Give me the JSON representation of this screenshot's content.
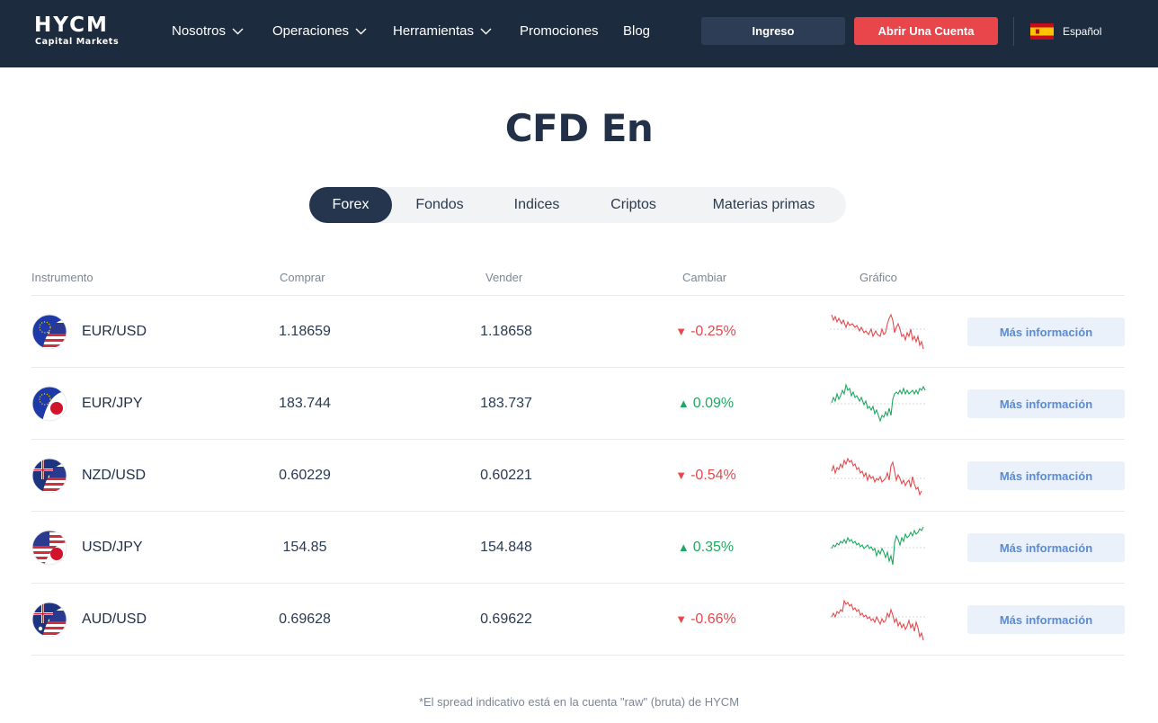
{
  "header": {
    "logo": "HYCM",
    "logo_sub": "Capital Markets",
    "nav": [
      {
        "label": "Nosotros",
        "dropdown": true
      },
      {
        "label": "Operaciones",
        "dropdown": true
      },
      {
        "label": "Herramientas",
        "dropdown": true
      },
      {
        "label": "Promociones",
        "dropdown": false
      },
      {
        "label": "Blog",
        "dropdown": false
      }
    ],
    "login_label": "Ingreso",
    "open_account_label": "Abrir Una Cuenta",
    "language": "Español",
    "colors": {
      "background": "#1d2b3e",
      "login_bg": "#2d3d55",
      "cta": "#e8464b"
    }
  },
  "page_title": "CFD En",
  "tabs": [
    {
      "label": "Forex",
      "active": true
    },
    {
      "label": "Fondos",
      "active": false
    },
    {
      "label": "Indices",
      "active": false
    },
    {
      "label": "Criptos",
      "active": false
    },
    {
      "label": "Materias primas",
      "active": false
    }
  ],
  "table": {
    "columns": {
      "instrument": "Instrumento",
      "buy": "Comprar",
      "sell": "Vender",
      "change": "Cambiar",
      "chart": "Gráfico"
    },
    "rows": [
      {
        "instrument": "EUR/USD",
        "flag": "eu-us-flag-icon",
        "buy": "1.18659",
        "sell": "1.18658",
        "change": "-0.25%",
        "direction": "down",
        "more": "Más información"
      },
      {
        "instrument": "EUR/JPY",
        "flag": "eu-jp-flag-icon",
        "buy": "183.744",
        "sell": "183.737",
        "change": "0.09%",
        "direction": "up",
        "more": "Más información"
      },
      {
        "instrument": "NZD/USD",
        "flag": "nz-us-flag-icon",
        "buy": "0.60229",
        "sell": "0.60221",
        "change": "-0.54%",
        "direction": "down",
        "more": "Más información"
      },
      {
        "instrument": "USD/JPY",
        "flag": "us-jp-flag-icon",
        "buy": "154.85",
        "sell": "154.848",
        "change": "0.35%",
        "direction": "up",
        "more": "Más información"
      },
      {
        "instrument": "AUD/USD",
        "flag": "au-us-flag-icon",
        "buy": "0.69628",
        "sell": "0.69622",
        "change": "-0.66%",
        "direction": "down",
        "more": "Más información"
      }
    ]
  },
  "footnote": "*El spread indicativo está en la cuenta \"raw\" (bruta) de HYCM",
  "colors": {
    "down": "#e04b4f",
    "up": "#20a860",
    "more_button_bg": "#eaf1fb",
    "more_button_text": "#5a8bd4",
    "active_tab": "#24354d"
  }
}
